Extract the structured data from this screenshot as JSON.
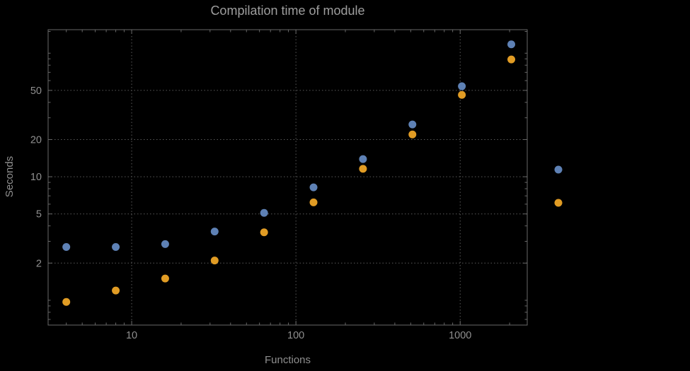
{
  "chart_data": {
    "type": "scatter",
    "title": "Compilation time of module",
    "xlabel": "Functions",
    "ylabel": "Seconds",
    "x_scale": "log",
    "y_scale": "log",
    "xlim": [
      3.1,
      2560
    ],
    "ylim": [
      0.63,
      155
    ],
    "grid": "dotted",
    "legend_position": "right-outside",
    "background_color": "#000000",
    "text_color": "#8f8f8f",
    "frame_color": "#686868",
    "grid_color": "#5a5a5a",
    "x": [
      4,
      8,
      16,
      32,
      64,
      128,
      256,
      512,
      1024,
      2048
    ],
    "series": [
      {
        "name": "blue-series",
        "label": "",
        "color": "#5E81B5",
        "values": [
          2.7,
          2.7,
          2.85,
          3.6,
          5.1,
          8.2,
          13.9,
          26.5,
          54,
          118
        ]
      },
      {
        "name": "orange-series",
        "label": "",
        "color": "#E19C24",
        "values": [
          0.97,
          1.2,
          1.5,
          2.1,
          3.55,
          6.2,
          11.6,
          22,
          46,
          89
        ]
      }
    ],
    "x_ticks": [
      {
        "value": 10,
        "label": "10"
      },
      {
        "value": 100,
        "label": "100"
      },
      {
        "value": 1000,
        "label": "1000"
      }
    ],
    "y_ticks": [
      {
        "value": 2,
        "label": "2"
      },
      {
        "value": 5,
        "label": "5"
      },
      {
        "value": 10,
        "label": "10"
      },
      {
        "value": 20,
        "label": "20"
      },
      {
        "value": 50,
        "label": "50"
      }
    ],
    "x_minor_ticks": [
      4,
      5,
      6,
      7,
      8,
      9,
      20,
      30,
      40,
      50,
      60,
      70,
      80,
      90,
      200,
      300,
      400,
      500,
      600,
      700,
      800,
      900,
      2000
    ],
    "y_minor_ticks": [
      0.7,
      0.8,
      0.9,
      1,
      3,
      4,
      6,
      7,
      8,
      9,
      30,
      40,
      60,
      70,
      80,
      90,
      100,
      150
    ]
  },
  "legend": {
    "markers": [
      {
        "series": "blue-series",
        "color": "#5E81B5"
      },
      {
        "series": "orange-series",
        "color": "#E19C24"
      }
    ]
  }
}
